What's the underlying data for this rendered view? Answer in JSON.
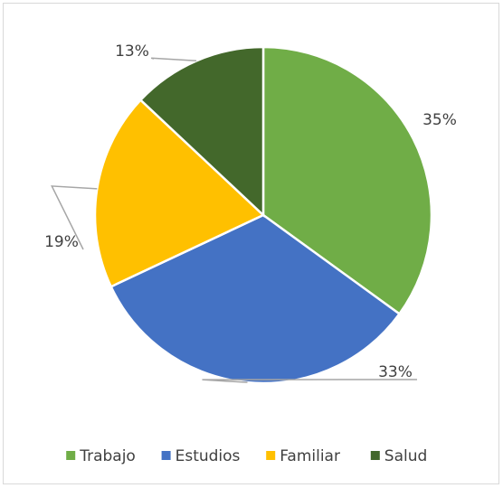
{
  "chart_data": {
    "type": "pie",
    "categories": [
      "Trabajo",
      "Estudios",
      "Familiar",
      "Salud"
    ],
    "values": [
      35,
      33,
      19,
      13
    ],
    "value_labels": [
      "35%",
      "33%",
      "19%",
      "13%"
    ],
    "colors": [
      "#70ad47",
      "#4472c4",
      "#ffc000",
      "#43682b"
    ],
    "legend": "bottom"
  }
}
